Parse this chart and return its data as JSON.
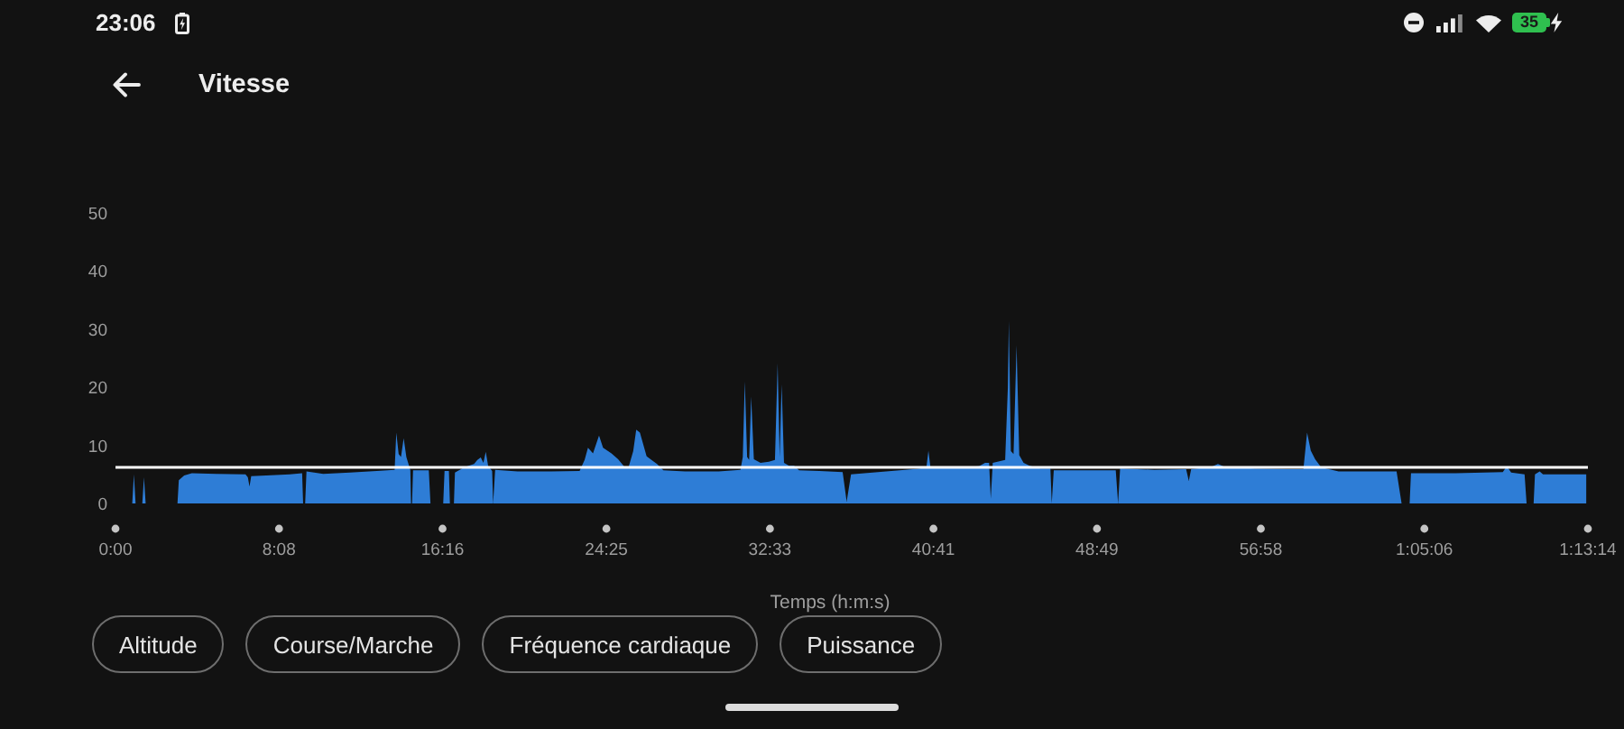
{
  "chart_data": {
    "type": "area",
    "title": "Vitesse",
    "xlabel": "Temps (h:m:s)",
    "x": [
      0,
      50,
      55,
      60,
      80,
      85,
      90,
      185,
      189,
      205,
      228,
      300,
      388,
      395,
      400,
      405,
      450,
      520,
      557,
      560,
      566,
      570,
      620,
      700,
      780,
      833,
      838,
      845,
      852,
      860,
      868,
      880,
      882,
      885,
      888,
      935,
      940,
      978,
      982,
      995,
      998,
      1010,
      1013,
      1040,
      1070,
      1080,
      1090,
      1098,
      1105,
      1112,
      1124,
      1127,
      1133,
      1200,
      1300,
      1385,
      1400,
      1410,
      1425,
      1443,
      1455,
      1480,
      1500,
      1520,
      1530,
      1545,
      1554,
      1565,
      1585,
      1616,
      1635,
      1700,
      1800,
      1865,
      1872,
      1878,
      1885,
      1891,
      1897,
      1905,
      1925,
      1950,
      1968,
      1976,
      1982,
      1988,
      1995,
      2010,
      2025,
      2040,
      2100,
      2170,
      2182,
      2195,
      2300,
      2400,
      2420,
      2426,
      2432,
      2500,
      2577,
      2595,
      2607,
      2612,
      2618,
      2655,
      2663,
      2666,
      2672,
      2680,
      2689,
      2697,
      2710,
      2728,
      2760,
      2790,
      2794,
      2800,
      2900,
      2985,
      2992,
      2998,
      3100,
      3195,
      3203,
      3210,
      3270,
      3290,
      3310,
      3400,
      3500,
      3545,
      3556,
      3567,
      3580,
      3598,
      3650,
      3823,
      3838,
      3862,
      3866,
      4000,
      4140,
      4152,
      4165,
      4205,
      4211,
      4232,
      4236,
      4250,
      4260,
      4389
    ],
    "values": [
      0,
      0,
      5,
      0,
      0,
      4.5,
      0,
      0,
      4,
      4.8,
      5.2,
      5.1,
      5.0,
      4.5,
      2.9,
      4.7,
      4.8,
      5.0,
      5.2,
      0,
      0,
      5.5,
      5.1,
      5.3,
      5.6,
      5.8,
      12.2,
      8.5,
      8,
      11.2,
      8,
      5.7,
      0,
      0,
      5.7,
      5.7,
      0,
      0,
      5.6,
      5.6,
      0,
      0,
      5.3,
      6.2,
      6.8,
      7.5,
      7.9,
      7.0,
      8.9,
      6.5,
      5.6,
      0,
      5.8,
      5.5,
      5.5,
      5.6,
      7.5,
      9.6,
      8.6,
      11.7,
      9.6,
      8.6,
      7.6,
      6.2,
      6.0,
      9.0,
      12.7,
      12.2,
      8.1,
      6.8,
      5.7,
      5.5,
      5.5,
      5.8,
      8,
      21,
      8,
      7.5,
      18.4,
      7.6,
      7.0,
      7.2,
      7.5,
      24.1,
      8,
      20.5,
      7.0,
      6.5,
      6.5,
      5.7,
      5.6,
      5.4,
      0.3,
      5.0,
      5.5,
      6.0,
      6.2,
      9.1,
      6.2,
      6.1,
      6.4,
      7.0,
      7.0,
      0.8,
      7.0,
      7.5,
      20,
      31.4,
      9,
      8.5,
      27.2,
      8.3,
      7,
      6.5,
      6.0,
      6.0,
      0,
      5.7,
      5.7,
      5.7,
      0,
      6.0,
      5.8,
      5.9,
      3.9,
      5.9,
      6.3,
      6.8,
      6.3,
      6.0,
      5.9,
      5.9,
      12.2,
      9.1,
      7.6,
      6.2,
      5.5,
      5.5,
      0,
      0,
      5.2,
      5.2,
      5.4,
      6.4,
      5.3,
      5.0,
      0,
      0,
      5.0,
      5.5,
      5.0,
      5.0
    ],
    "color": "#2e7dd6",
    "xlim": [
      0,
      4394
    ],
    "xticks": [
      {
        "value": 0,
        "label": "0:00"
      },
      {
        "value": 488,
        "label": "8:08"
      },
      {
        "value": 976,
        "label": "16:16"
      },
      {
        "value": 1465,
        "label": "24:25"
      },
      {
        "value": 1953,
        "label": "32:33"
      },
      {
        "value": 2441,
        "label": "40:41"
      },
      {
        "value": 2929,
        "label": "48:49"
      },
      {
        "value": 3418,
        "label": "56:58"
      },
      {
        "value": 3906,
        "label": "1:05:06"
      },
      {
        "value": 4394,
        "label": "1:13:14"
      }
    ],
    "ylim": [
      0,
      50
    ],
    "yticks": [
      0,
      10,
      20,
      30,
      40,
      50
    ],
    "ref_lines": [
      {
        "axis": "y",
        "value": 6.2,
        "color": "#ffffff"
      }
    ],
    "annotations": [
      "23:06",
      "35",
      "Altitude",
      "Course/Marche",
      "Fréquence cardiaque",
      "Puissance"
    ]
  }
}
